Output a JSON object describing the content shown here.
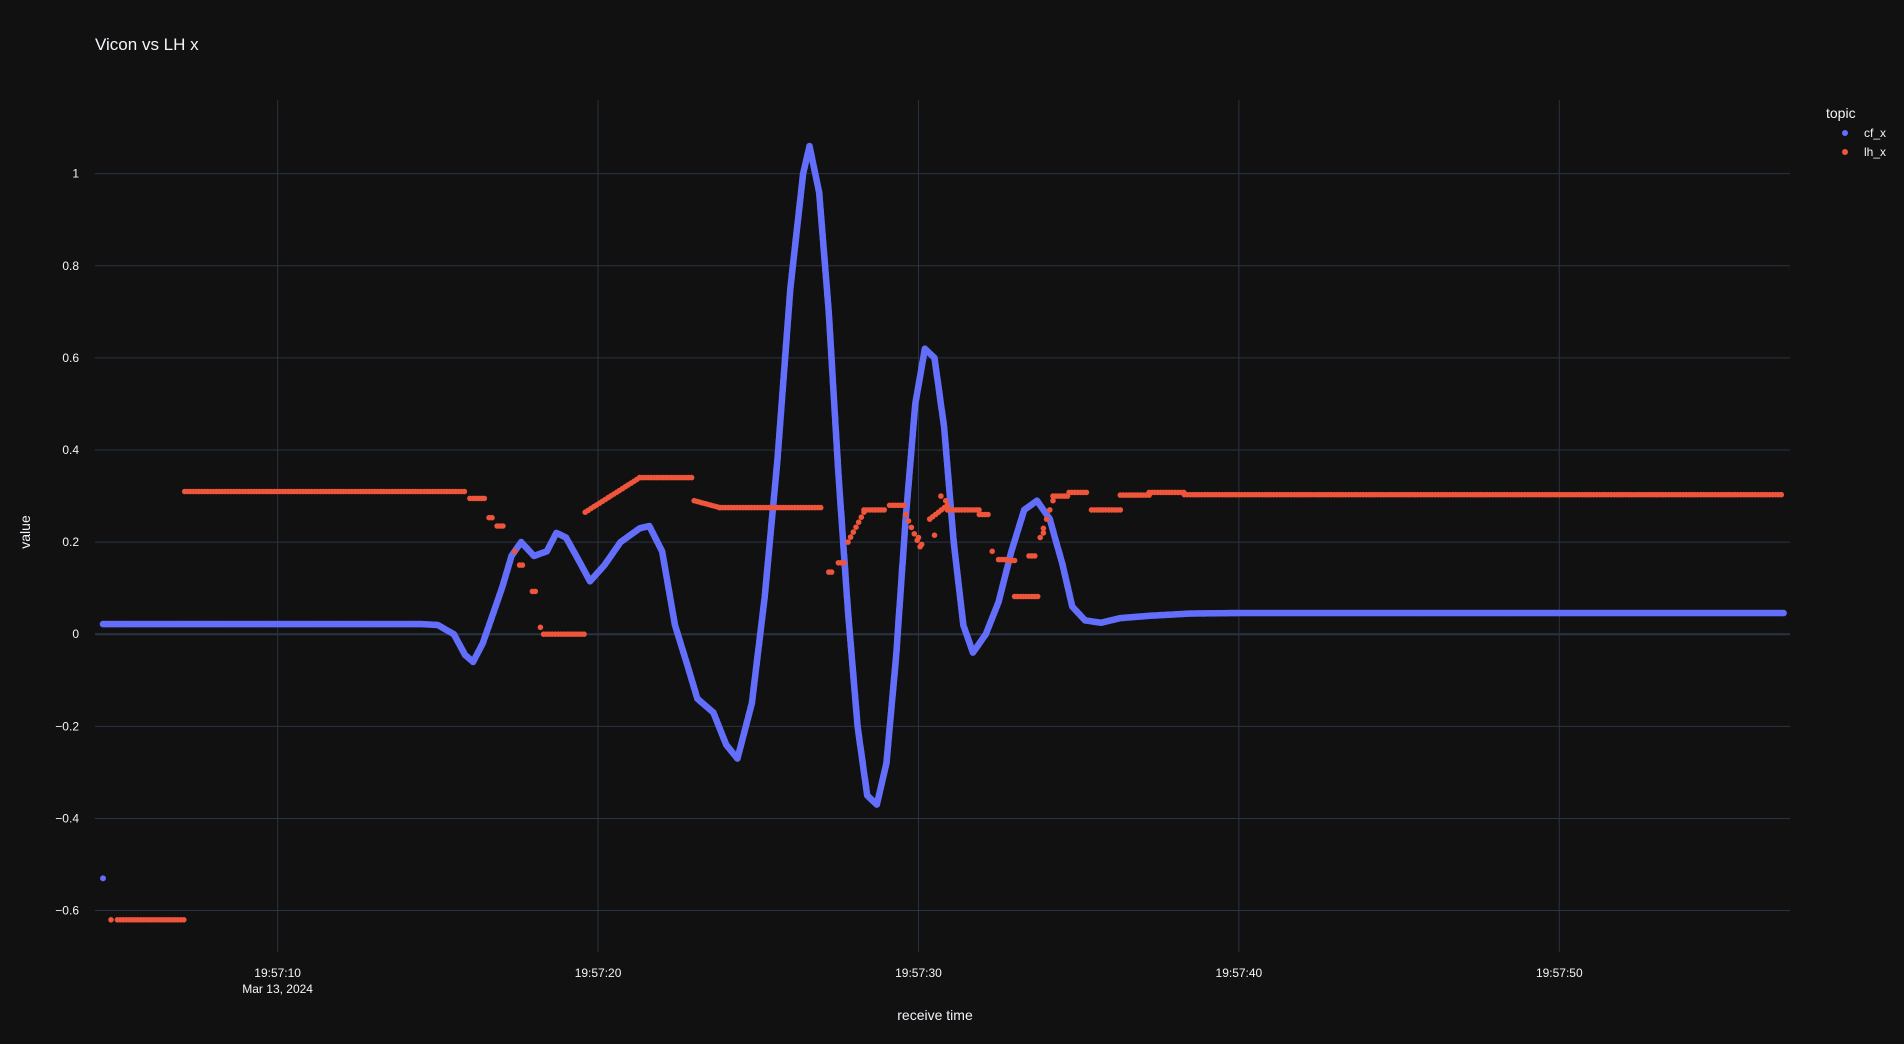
{
  "chart_data": {
    "type": "scatter",
    "title": "Vicon vs LH x",
    "xlabel": "receive time",
    "ylabel": "value",
    "legend_title": "topic",
    "legend_position": "top-right",
    "grid": true,
    "x_unit": "seconds after 19:57:00, Mar 13, 2024",
    "xlim": [
      4.3,
      57.2
    ],
    "ylim": [
      -0.69,
      1.16
    ],
    "x_ticks": [
      {
        "value": 10,
        "label": "19:57:10",
        "sublabel": "Mar 13, 2024"
      },
      {
        "value": 20,
        "label": "19:57:20",
        "sublabel": ""
      },
      {
        "value": 30,
        "label": "19:57:30",
        "sublabel": ""
      },
      {
        "value": 40,
        "label": "19:57:40",
        "sublabel": ""
      },
      {
        "value": 50,
        "label": "19:57:50",
        "sublabel": ""
      }
    ],
    "y_ticks": [
      {
        "value": 1,
        "label": "1"
      },
      {
        "value": 0.8,
        "label": "0.8"
      },
      {
        "value": 0.6,
        "label": "0.6"
      },
      {
        "value": 0.4,
        "label": "0.4"
      },
      {
        "value": 0.2,
        "label": "0.2"
      },
      {
        "value": 0,
        "label": "0"
      },
      {
        "value": -0.2,
        "label": "−0.2"
      },
      {
        "value": -0.4,
        "label": "−0.4"
      },
      {
        "value": -0.6,
        "label": "−0.6"
      }
    ],
    "series": [
      {
        "name": "cf_x",
        "color": "#636efa",
        "outliers": [
          [
            4.55,
            -0.53
          ]
        ],
        "points": [
          [
            4.55,
            0.022
          ],
          [
            14.5,
            0.022
          ],
          [
            15.0,
            0.02
          ],
          [
            15.5,
            0.0
          ],
          [
            15.85,
            -0.045
          ],
          [
            16.1,
            -0.06
          ],
          [
            16.4,
            -0.02
          ],
          [
            16.7,
            0.04
          ],
          [
            17.0,
            0.1
          ],
          [
            17.3,
            0.17
          ],
          [
            17.6,
            0.2
          ],
          [
            18.0,
            0.17
          ],
          [
            18.4,
            0.18
          ],
          [
            18.7,
            0.22
          ],
          [
            19.0,
            0.21
          ],
          [
            19.4,
            0.16
          ],
          [
            19.75,
            0.115
          ],
          [
            20.2,
            0.15
          ],
          [
            20.7,
            0.2
          ],
          [
            21.3,
            0.23
          ],
          [
            21.6,
            0.235
          ],
          [
            22.0,
            0.18
          ],
          [
            22.4,
            0.02
          ],
          [
            22.8,
            -0.07
          ],
          [
            23.1,
            -0.14
          ],
          [
            23.6,
            -0.17
          ],
          [
            24.0,
            -0.24
          ],
          [
            24.35,
            -0.27
          ],
          [
            24.8,
            -0.15
          ],
          [
            25.2,
            0.08
          ],
          [
            25.6,
            0.38
          ],
          [
            26.0,
            0.75
          ],
          [
            26.4,
            1.0
          ],
          [
            26.6,
            1.06
          ],
          [
            26.9,
            0.96
          ],
          [
            27.2,
            0.7
          ],
          [
            27.5,
            0.35
          ],
          [
            27.8,
            0.05
          ],
          [
            28.1,
            -0.2
          ],
          [
            28.4,
            -0.35
          ],
          [
            28.7,
            -0.37
          ],
          [
            29.0,
            -0.28
          ],
          [
            29.3,
            -0.05
          ],
          [
            29.6,
            0.25
          ],
          [
            29.9,
            0.5
          ],
          [
            30.2,
            0.62
          ],
          [
            30.5,
            0.6
          ],
          [
            30.8,
            0.45
          ],
          [
            31.1,
            0.2
          ],
          [
            31.4,
            0.02
          ],
          [
            31.7,
            -0.04
          ],
          [
            32.1,
            0.0
          ],
          [
            32.5,
            0.07
          ],
          [
            32.9,
            0.18
          ],
          [
            33.3,
            0.27
          ],
          [
            33.7,
            0.29
          ],
          [
            34.1,
            0.25
          ],
          [
            34.5,
            0.15
          ],
          [
            34.8,
            0.06
          ],
          [
            35.2,
            0.03
          ],
          [
            35.7,
            0.025
          ],
          [
            36.3,
            0.035
          ],
          [
            37.2,
            0.04
          ],
          [
            38.5,
            0.045
          ],
          [
            40.0,
            0.046
          ],
          [
            57.0,
            0.046
          ]
        ]
      },
      {
        "name": "lh_x",
        "color": "#ef553b",
        "segments": [
          [
            4.8,
            4.8,
            -0.62
          ],
          [
            5.0,
            7.1,
            -0.62
          ],
          [
            7.1,
            15.9,
            0.31
          ],
          [
            16.0,
            16.5,
            0.295
          ],
          [
            16.6,
            16.75,
            0.253
          ],
          [
            16.85,
            17.1,
            0.235
          ],
          [
            17.55,
            17.65,
            0.15
          ],
          [
            17.95,
            18.05,
            0.093
          ],
          [
            18.2,
            18.25,
            0.015
          ],
          [
            18.3,
            19.6,
            0.0
          ],
          [
            21.3,
            23.0,
            0.34
          ],
          [
            23.8,
            27.0,
            0.275
          ],
          [
            27.2,
            27.35,
            0.135
          ],
          [
            27.5,
            27.75,
            0.155
          ],
          [
            28.3,
            29.0,
            0.27
          ],
          [
            29.1,
            29.6,
            0.28
          ],
          [
            30.9,
            31.9,
            0.27
          ],
          [
            31.9,
            32.2,
            0.26
          ],
          [
            32.5,
            32.8,
            0.162
          ],
          [
            33.0,
            33.8,
            0.082
          ],
          [
            33.45,
            33.7,
            0.17
          ],
          [
            34.2,
            34.7,
            0.3
          ],
          [
            34.7,
            35.3,
            0.308
          ],
          [
            35.4,
            36.3,
            0.27
          ],
          [
            36.3,
            37.2,
            0.302
          ],
          [
            37.2,
            38.3,
            0.308
          ],
          [
            38.3,
            57.0,
            0.303
          ]
        ],
        "ramps": [
          [
            19.6,
            0.265,
            21.3,
            0.34
          ],
          [
            23.0,
            0.29,
            23.8,
            0.275
          ],
          [
            27.8,
            0.2,
            28.3,
            0.265
          ],
          [
            29.6,
            0.26,
            30.05,
            0.19
          ],
          [
            30.35,
            0.25,
            30.9,
            0.28
          ],
          [
            32.8,
            0.16,
            33.0,
            0.16
          ],
          [
            33.8,
            0.21,
            34.2,
            0.29
          ]
        ],
        "points": [
          [
            17.4,
            0.18
          ],
          [
            30.0,
            0.21
          ],
          [
            30.1,
            0.195
          ],
          [
            30.5,
            0.215
          ],
          [
            30.7,
            0.3
          ],
          [
            30.85,
            0.29
          ],
          [
            32.3,
            0.18
          ],
          [
            33.9,
            0.22
          ]
        ]
      }
    ]
  }
}
